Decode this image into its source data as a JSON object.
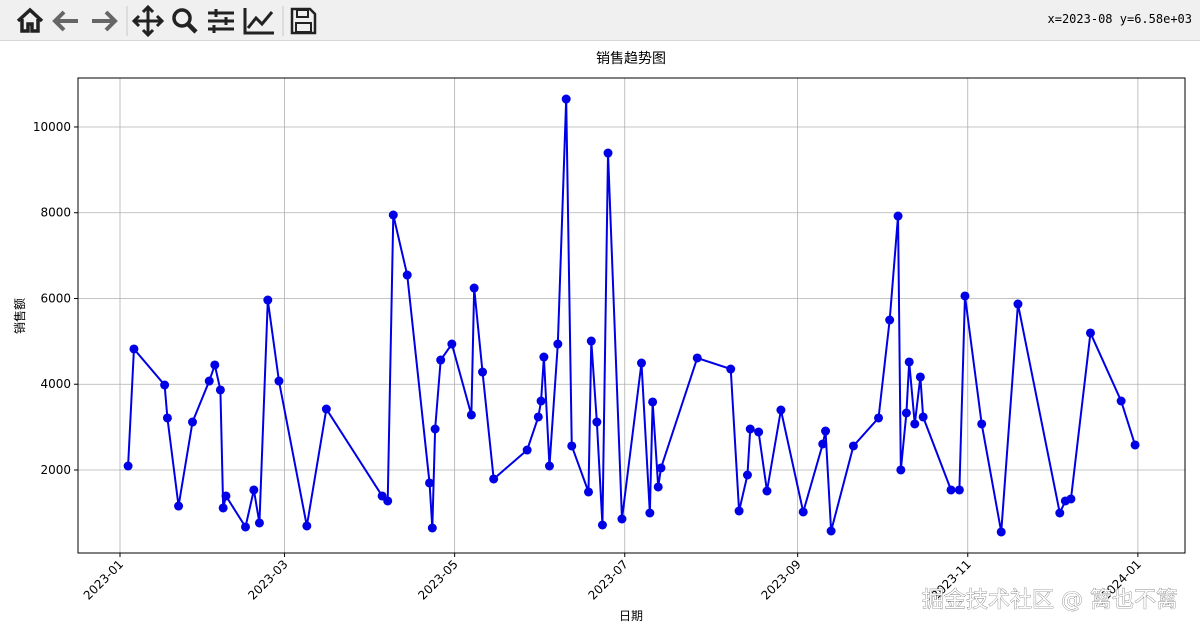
{
  "toolbar": {
    "status": "x=2023-08 y=6.58e+03"
  },
  "watermark": "掘金技术社区 @ 篱也不篱",
  "chart_data": {
    "type": "line",
    "title": "销售趋势图",
    "x_label": "日期",
    "y_label": "销售额",
    "x": [
      2.9,
      5,
      16,
      17,
      21,
      26,
      32,
      34,
      36,
      37,
      38,
      45,
      48,
      50,
      53,
      57,
      67,
      74,
      94,
      96,
      98,
      103,
      111,
      112,
      113,
      115,
      119,
      126,
      127,
      130,
      134,
      146,
      150,
      151,
      152,
      154,
      157,
      160,
      162,
      168,
      169,
      171,
      173,
      175,
      180,
      187,
      190,
      191,
      193,
      194,
      207,
      219,
      222,
      225,
      226,
      229,
      232,
      237,
      245,
      252,
      253,
      255,
      263,
      272,
      276,
      279,
      280,
      282,
      283,
      285,
      287,
      288,
      298,
      301,
      303,
      309,
      316,
      322,
      337,
      339,
      341,
      348,
      359,
      364
    ],
    "series": [
      {
        "name": "销售额",
        "color": "#0000e6",
        "marker": "o",
        "values": [
          2093,
          4822,
          3982,
          3213,
          1160,
          3119,
          4075,
          4449,
          3866,
          1114,
          1394,
          671,
          1534,
          764,
          5964,
          4075,
          694,
          3422,
          1394,
          1277,
          7947,
          6547,
          1697,
          647,
          2956,
          4565,
          4938,
          3283,
          6244,
          4285,
          1790,
          2466,
          3236,
          3609,
          4635,
          2093,
          4938,
          10652,
          2560,
          1487,
          5008,
          3119,
          717,
          9392,
          857,
          4495,
          997,
          3586,
          1604,
          2047,
          4612,
          4355,
          1044,
          1883,
          2956,
          2886,
          1510,
          3399,
          1021,
          2606,
          2909,
          577,
          2560,
          3213,
          5498,
          7923,
          2000,
          3329,
          4519,
          3073,
          4169,
          3236,
          1534,
          1534,
          6058,
          3073,
          554,
          5871,
          997,
          1277,
          1324,
          5195,
          3609,
          2583
        ]
      }
    ],
    "xlim": [
      -15.06,
      381.9
    ],
    "ylim": [
      64,
      11142
    ],
    "xticks": [
      {
        "value": 0,
        "label": "2023-01"
      },
      {
        "value": 59,
        "label": "2023-03"
      },
      {
        "value": 120,
        "label": "2023-05"
      },
      {
        "value": 181,
        "label": "2023-07"
      },
      {
        "value": 243,
        "label": "2023-09"
      },
      {
        "value": 304,
        "label": "2023-11"
      },
      {
        "value": 365,
        "label": "2024-01"
      }
    ],
    "yticks": [
      2000,
      4000,
      6000,
      8000,
      10000
    ],
    "grid": true
  }
}
